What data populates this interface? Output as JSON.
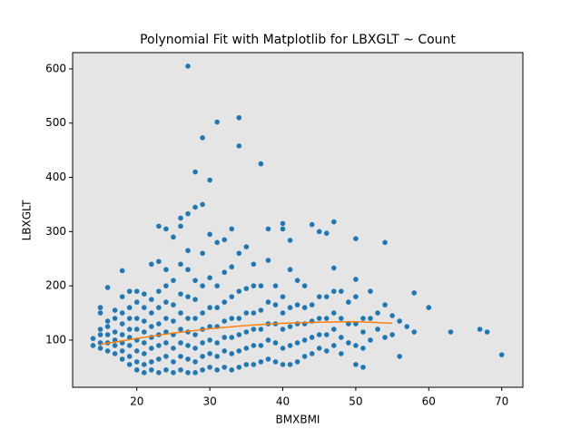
{
  "chart_data": {
    "type": "scatter",
    "title": "Polynomial Fit with Matplotlib for LBXGLT ~ Count",
    "x_label": "BMXBMI",
    "y_label": "LBXGLT",
    "xlim": [
      11.2,
      72.9
    ],
    "ylim": [
      13,
      630
    ],
    "xticks": [
      20,
      30,
      40,
      50,
      60,
      70
    ],
    "yticks": [
      100,
      200,
      300,
      400,
      500,
      600
    ],
    "background": "#e5e5e5",
    "series": [
      {
        "type": "scatter",
        "color": "#1f77b4",
        "x": [
          14,
          14,
          15,
          15,
          15,
          15,
          15,
          15,
          16,
          16,
          16,
          16,
          16,
          16,
          17,
          17,
          17,
          17,
          17,
          17,
          18,
          18,
          18,
          18,
          18,
          18,
          18,
          18,
          19,
          19,
          19,
          19,
          19,
          19,
          19,
          19,
          20,
          20,
          20,
          20,
          20,
          20,
          20,
          20,
          21,
          21,
          21,
          21,
          21,
          21,
          21,
          21,
          22,
          22,
          22,
          22,
          22,
          22,
          22,
          22,
          23,
          23,
          23,
          23,
          23,
          23,
          23,
          23,
          23,
          24,
          24,
          24,
          24,
          24,
          24,
          24,
          24,
          24,
          25,
          25,
          25,
          25,
          25,
          25,
          25,
          25,
          26,
          26,
          26,
          26,
          26,
          26,
          26,
          26,
          26,
          27,
          27,
          27,
          27,
          27,
          27,
          27,
          27,
          27,
          27,
          28,
          28,
          28,
          28,
          28,
          28,
          28,
          28,
          28,
          29,
          29,
          29,
          29,
          29,
          29,
          29,
          29,
          29,
          30,
          30,
          30,
          30,
          30,
          30,
          30,
          30,
          31,
          31,
          31,
          31,
          31,
          31,
          31,
          31,
          32,
          32,
          32,
          32,
          32,
          32,
          32,
          33,
          33,
          33,
          33,
          33,
          33,
          33,
          34,
          34,
          34,
          34,
          34,
          34,
          34,
          34,
          35,
          35,
          35,
          35,
          35,
          35,
          36,
          36,
          36,
          36,
          36,
          36,
          37,
          37,
          37,
          37,
          37,
          37,
          38,
          38,
          38,
          38,
          38,
          38,
          39,
          39,
          39,
          39,
          39,
          40,
          40,
          40,
          40,
          40,
          40,
          40,
          41,
          41,
          41,
          41,
          41,
          41,
          42,
          42,
          42,
          42,
          42,
          43,
          43,
          43,
          43,
          43,
          44,
          44,
          44,
          44,
          44,
          45,
          45,
          45,
          45,
          45,
          46,
          46,
          46,
          46,
          46,
          47,
          47,
          47,
          47,
          47,
          47,
          48,
          48,
          48,
          48,
          49,
          49,
          49,
          50,
          50,
          50,
          50,
          50,
          50,
          51,
          51,
          51,
          51,
          52,
          52,
          52,
          53,
          53,
          54,
          54,
          54,
          55,
          55,
          56,
          56,
          57,
          58,
          58,
          60,
          63,
          67,
          68,
          70
        ],
        "values": [
          90,
          103,
          85,
          95,
          110,
          120,
          150,
          160,
          80,
          95,
          110,
          125,
          135,
          197,
          75,
          90,
          100,
          115,
          140,
          155,
          65,
          80,
          95,
          110,
          130,
          150,
          180,
          228,
          55,
          70,
          90,
          105,
          120,
          140,
          160,
          190,
          45,
          60,
          80,
          100,
          120,
          140,
          170,
          190,
          40,
          55,
          75,
          95,
          115,
          135,
          160,
          185,
          45,
          60,
          85,
          105,
          125,
          150,
          175,
          240,
          40,
          65,
          90,
          110,
          130,
          160,
          190,
          310,
          245,
          45,
          70,
          95,
          115,
          140,
          170,
          200,
          305,
          230,
          40,
          60,
          85,
          110,
          135,
          165,
          210,
          290,
          45,
          70,
          95,
          120,
          150,
          185,
          240,
          310,
          325,
          40,
          65,
          90,
          115,
          140,
          180,
          230,
          265,
          333,
          605,
          40,
          60,
          85,
          110,
          140,
          175,
          210,
          345,
          410,
          45,
          70,
          95,
          120,
          150,
          200,
          260,
          350,
          473,
          50,
          75,
          100,
          125,
          160,
          215,
          295,
          395,
          45,
          70,
          95,
          125,
          160,
          200,
          280,
          502,
          50,
          80,
          105,
          135,
          170,
          225,
          285,
          45,
          75,
          105,
          140,
          180,
          235,
          305,
          50,
          80,
          110,
          140,
          190,
          260,
          458,
          510,
          55,
          85,
          115,
          150,
          195,
          272,
          55,
          90,
          120,
          150,
          200,
          240,
          60,
          90,
          120,
          155,
          200,
          425,
          65,
          100,
          130,
          170,
          247,
          305,
          60,
          95,
          130,
          165,
          200,
          55,
          85,
          120,
          150,
          180,
          305,
          315,
          55,
          90,
          125,
          160,
          230,
          284,
          60,
          95,
          130,
          165,
          210,
          70,
          100,
          130,
          160,
          200,
          75,
          105,
          135,
          165,
          313,
          85,
          110,
          140,
          180,
          300,
          80,
          110,
          140,
          180,
          297,
          90,
          120,
          150,
          190,
          233,
          318,
          75,
          105,
          140,
          190,
          95,
          130,
          170,
          55,
          90,
          130,
          180,
          212,
          287,
          50,
          85,
          115,
          140,
          100,
          140,
          190,
          120,
          150,
          105,
          165,
          280,
          110,
          145,
          70,
          135,
          125,
          115,
          187,
          160,
          115,
          120,
          115,
          73
        ]
      },
      {
        "type": "line",
        "color": "#ff7f0e",
        "x": [
          15,
          20,
          25,
          30,
          35,
          40,
          45,
          50,
          55
        ],
        "values": [
          92,
          103,
          113,
          121,
          127,
          131,
          133,
          134,
          131
        ]
      }
    ]
  }
}
